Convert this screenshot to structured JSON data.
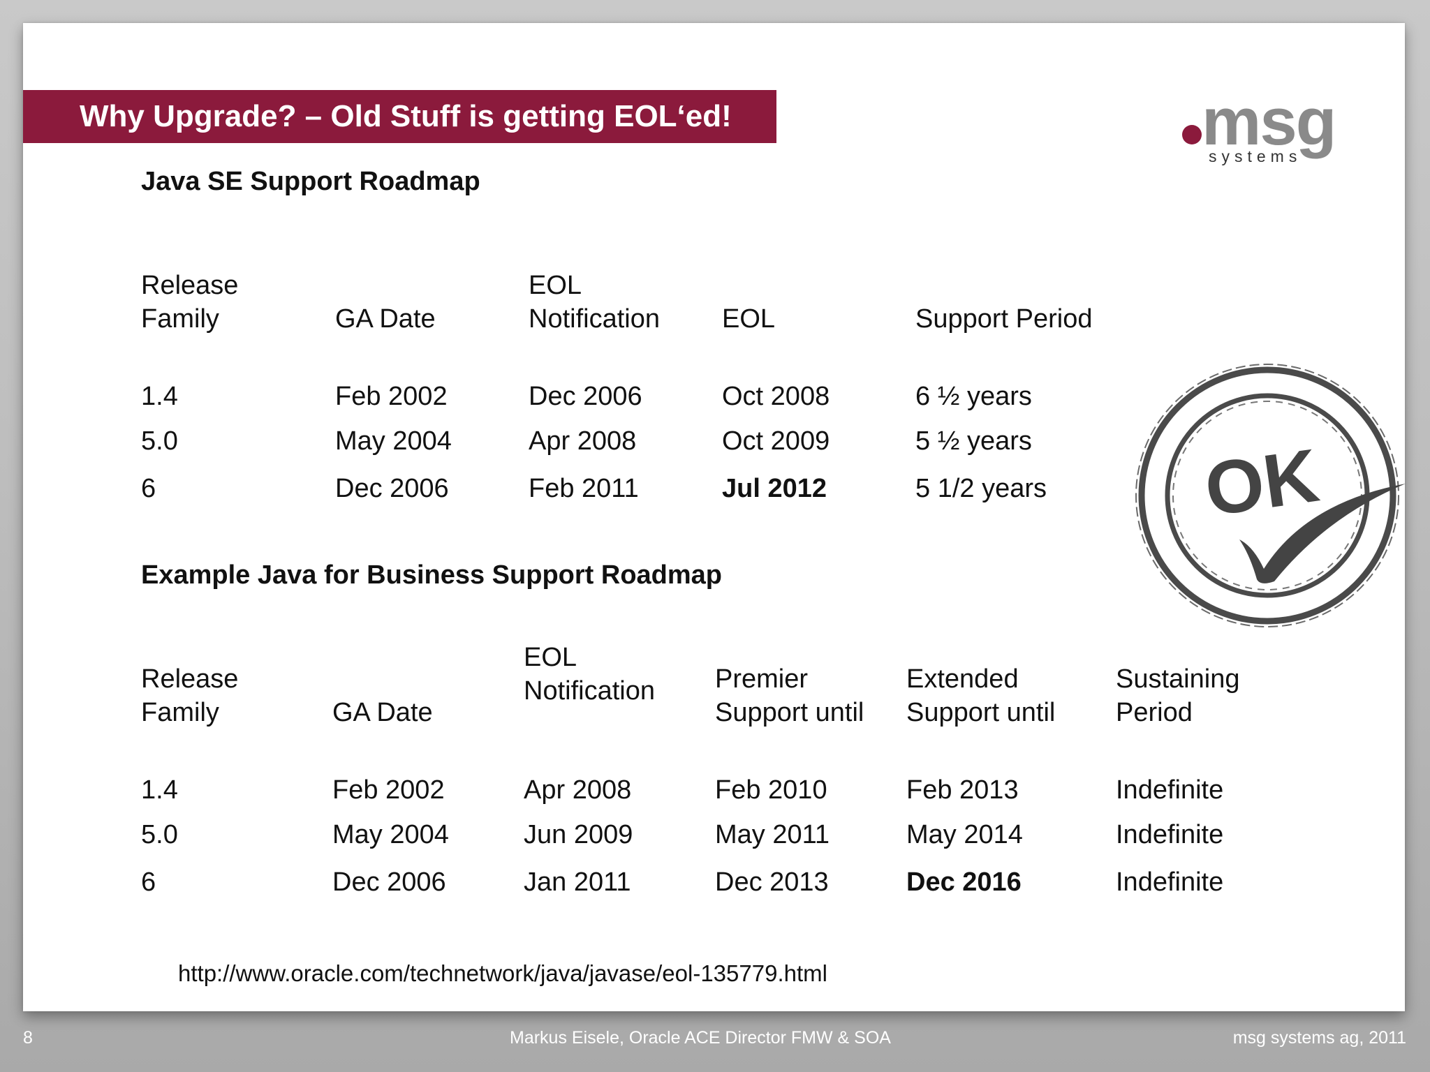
{
  "header": {
    "title": "Why Upgrade? – Old Stuff is getting EOL‘ed!",
    "logo_text": "msg",
    "logo_subtext": "systems"
  },
  "table1": {
    "title": "Java SE Support Roadmap",
    "headers": [
      [
        "Release",
        "Family"
      ],
      [
        "GA Date"
      ],
      [
        "EOL",
        "Notification"
      ],
      [
        "EOL"
      ],
      [
        "Support Period"
      ]
    ],
    "rows": [
      [
        "1.4",
        "Feb 2002",
        "Dec 2006",
        "Oct 2008",
        "6 ½ years"
      ],
      [
        "5.0",
        "May 2004",
        "Apr 2008",
        "Oct 2009",
        "5 ½ years"
      ],
      [
        "6",
        "Dec 2006",
        "Feb 2011",
        "Jul 2012",
        "5 1/2 years"
      ]
    ]
  },
  "table2": {
    "title": "Example Java for Business Support Roadmap",
    "headers": [
      [
        "Release",
        "Family"
      ],
      [
        "GA Date"
      ],
      [
        "EOL",
        "Notification"
      ],
      [
        "Premier",
        "Support until"
      ],
      [
        "Extended",
        "Support until"
      ],
      [
        "Sustaining",
        "Period"
      ]
    ],
    "rows": [
      [
        "1.4",
        "Feb 2002",
        "Apr 2008",
        "Feb 2010",
        "Feb 2013",
        "Indefinite"
      ],
      [
        "5.0",
        "May 2004",
        "Jun 2009",
        "May 2011",
        "May 2014",
        "Indefinite"
      ],
      [
        "6",
        "Dec 2006",
        "Jan 2011",
        "Dec 2013",
        "Dec 2016",
        "Indefinite"
      ]
    ]
  },
  "stamp": {
    "text": "OK"
  },
  "source_url": "http://www.oracle.com/technetwork/java/javase/eol-135779.html",
  "footer": {
    "page_number": "8",
    "author": "Markus Eisele, Oracle ACE Director FMW & SOA",
    "company": "msg systems ag, 2011"
  },
  "colors": {
    "accent": "#8b1a3c",
    "logo_gray": "#8a8a8a"
  }
}
